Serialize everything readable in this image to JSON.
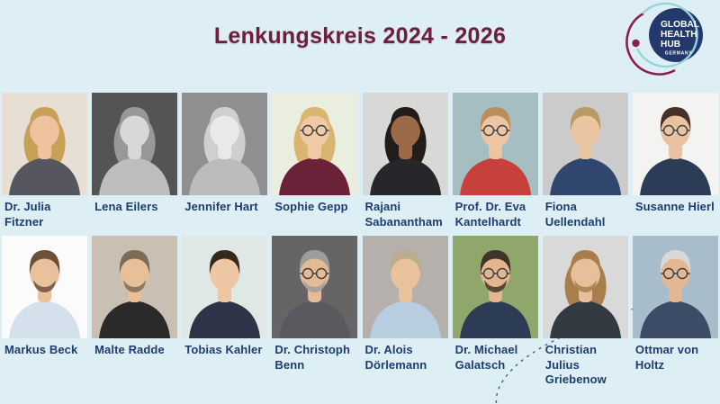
{
  "page": {
    "title": "Lenkungskreis 2024 - 2026",
    "background_color": "#ddeef5",
    "title_color": "#6e1f3f",
    "name_color": "#1e3c6e"
  },
  "logo": {
    "name": "Global Health Hub Germany",
    "lines": [
      "GLOBAL",
      "HEALTH",
      "HUB"
    ],
    "country": "GERMANY",
    "navy": "#24396b",
    "teal": "#96d6db",
    "maroon": "#8e1e4c"
  },
  "decor": {
    "dashed_arc_color": "#2f4d80"
  },
  "members": {
    "rows": [
      [
        {
          "name": "Dr. Julia Fitzner",
          "photo": {
            "bg": "#e7dfd3",
            "hair": "#c7a158",
            "skin": "#eec49e",
            "shirt": "#55565e",
            "long": true
          }
        },
        {
          "name": "Lena Eilers",
          "photo": {
            "bg": "#545454",
            "hair": "#989898",
            "skin": "#d8d8d8",
            "shirt": "#bdbdbd",
            "long": true
          }
        },
        {
          "name": "Jennifer Hart",
          "photo": {
            "bg": "#8f8f8f",
            "hair": "#cfcfcf",
            "skin": "#e9e9e9",
            "shirt": "#bcbcbc",
            "long": true
          }
        },
        {
          "name": "Sophie Gepp",
          "photo": {
            "bg": "#e9eede",
            "hair": "#d9b570",
            "skin": "#f0caa6",
            "shirt": "#6b2138",
            "long": true,
            "glasses": true
          }
        },
        {
          "name": "Rajani\nSabanantham",
          "photo": {
            "bg": "#d8d8d6",
            "hair": "#221d1a",
            "skin": "#9c6a48",
            "shirt": "#26262b",
            "long": true
          }
        },
        {
          "name": "Prof. Dr. Eva\nKantelhardt",
          "photo": {
            "bg": "#a4bec2",
            "hair": "#bb8f5c",
            "skin": "#eec5a2",
            "shirt": "#c8403c",
            "glasses": true
          }
        },
        {
          "name": "Fiona Uellendahl",
          "photo": {
            "bg": "#cbcbcb",
            "hair": "#b79a66",
            "skin": "#eac5a2",
            "shirt": "#31466f"
          }
        },
        {
          "name": "Susanne Hierl",
          "photo": {
            "bg": "#f3f3f1",
            "hair": "#47302a",
            "skin": "#eac2a0",
            "shirt": "#2c3b56",
            "glasses": true
          }
        }
      ],
      [
        {
          "name": "Markus Beck",
          "photo": {
            "bg": "#fbfbfb",
            "hair": "#6d5038",
            "skin": "#e9c19c",
            "shirt": "#d4e0eb",
            "beard": true
          }
        },
        {
          "name": "Malte Radde",
          "photo": {
            "bg": "#c9bfb3",
            "hair": "#7c6c54",
            "skin": "#e7bf99",
            "shirt": "#2a2a2a",
            "beard": true
          }
        },
        {
          "name": "Tobias Kahler",
          "photo": {
            "bg": "#dfe8e5",
            "hair": "#35291f",
            "skin": "#efc6a3",
            "shirt": "#2e3448"
          }
        },
        {
          "name": "Dr. Christoph\nBenn",
          "photo": {
            "bg": "#656565",
            "hair": "#9d9d9d",
            "skin": "#e5bb95",
            "shirt": "#585a60",
            "glasses": true,
            "beard": true
          }
        },
        {
          "name": "Dr. Alois\nDörlemann",
          "photo": {
            "bg": "#b5b0ac",
            "hair": "#bcab8e",
            "skin": "#e9c29c",
            "shirt": "#b9cde1"
          }
        },
        {
          "name": "Dr. Michael\nGalatsch",
          "photo": {
            "bg": "#8fa76b",
            "hair": "#3e352b",
            "skin": "#e3b690",
            "shirt": "#2d3c55",
            "glasses": true,
            "beard": true
          }
        },
        {
          "name": "Christian Julius\nGriebenow",
          "photo": {
            "bg": "#d9d9d9",
            "hair": "#a87e4d",
            "skin": "#e7bf9b",
            "shirt": "#343a41",
            "long": true,
            "beard": true
          }
        },
        {
          "name": "Ottmar von Holtz",
          "photo": {
            "bg": "#a7bdcc",
            "hair": "#d8d8d8",
            "skin": "#e3b793",
            "shirt": "#3c4c67",
            "glasses": true
          }
        }
      ]
    ]
  }
}
